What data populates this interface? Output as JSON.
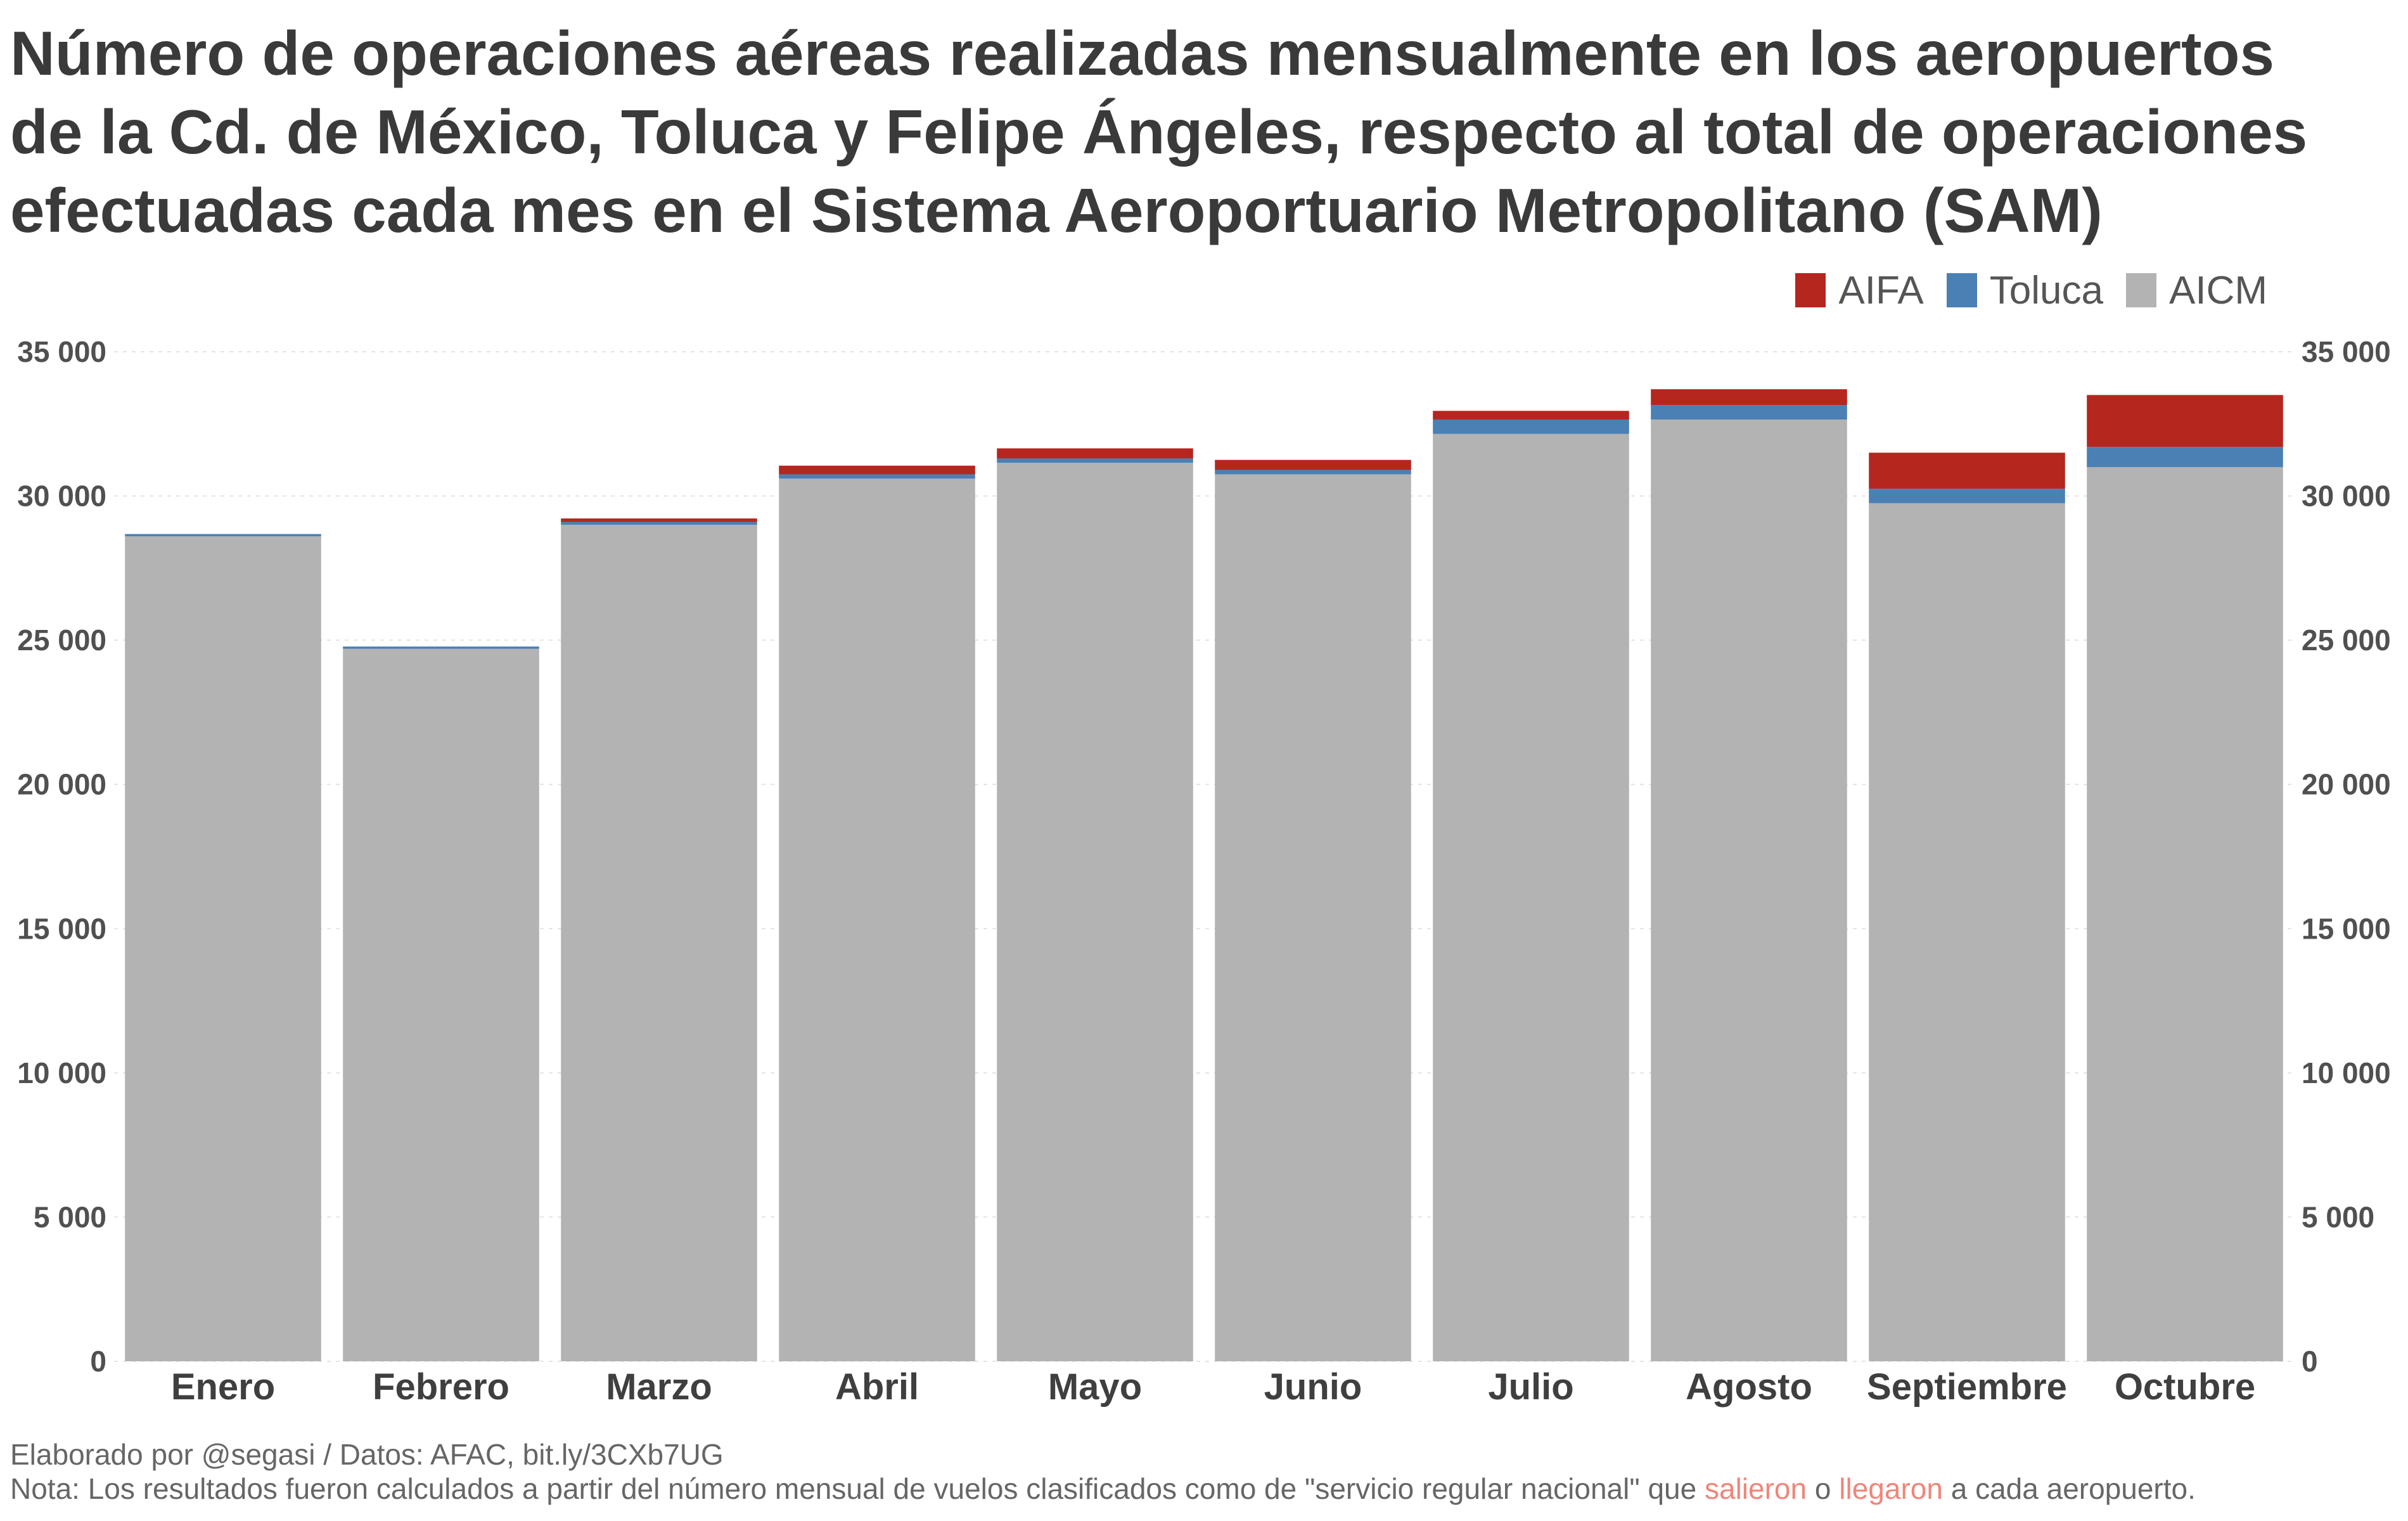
{
  "title": "Número de operaciones aéreas realizadas mensualmente en los aeropuertos de la Cd. de México, Toluca y Felipe Ángeles, respecto al total de operaciones efectuadas cada mes en el Sistema Aeroportuario Metropolitano (SAM)",
  "legend": [
    {
      "key": "aifa",
      "label": "AIFA",
      "color": "#b5261f"
    },
    {
      "key": "toluca",
      "label": "Toluca",
      "color": "#4a80b4"
    },
    {
      "key": "aicm",
      "label": "AICM",
      "color": "#b3b3b3"
    }
  ],
  "footer": {
    "credit": "Elaborado por @segasi / Datos: AFAC, bit.ly/3CXb7UG",
    "note_start": "Nota: Los resultados fueron calculados a partir del número mensual de vuelos clasificados como de \"servicio regular nacional\" que ",
    "note_salieron": "salieron",
    "note_o": " o ",
    "note_llegaron": "llegaron",
    "note_end": " a cada aeropuerto."
  },
  "chart_data": {
    "type": "bar",
    "stacked": true,
    "categories": [
      "Enero",
      "Febrero",
      "Marzo",
      "Abril",
      "Mayo",
      "Junio",
      "Julio",
      "Agosto",
      "Septiembre",
      "Octubre"
    ],
    "series": [
      {
        "name": "AICM",
        "color": "#b3b3b3",
        "values": [
          28600,
          24700,
          29000,
          30600,
          31150,
          30750,
          32150,
          32650,
          29750,
          31000
        ]
      },
      {
        "name": "Toluca",
        "color": "#4a80b4",
        "values": [
          80,
          80,
          100,
          150,
          150,
          150,
          500,
          500,
          500,
          700
        ]
      },
      {
        "name": "AIFA",
        "color": "#b5261f",
        "values": [
          0,
          0,
          120,
          300,
          350,
          350,
          300,
          550,
          1250,
          1800
        ]
      }
    ],
    "y_ticks": [
      0,
      5000,
      10000,
      15000,
      20000,
      25000,
      30000,
      35000
    ],
    "y_tick_labels": [
      "0",
      "5 000",
      "10 000",
      "15 000",
      "20 000",
      "25 000",
      "30 000",
      "35 000"
    ],
    "ylim": [
      0,
      35000
    ],
    "grid": true,
    "legend_position": "top-right",
    "y_axis_sides": [
      "left",
      "right"
    ]
  }
}
